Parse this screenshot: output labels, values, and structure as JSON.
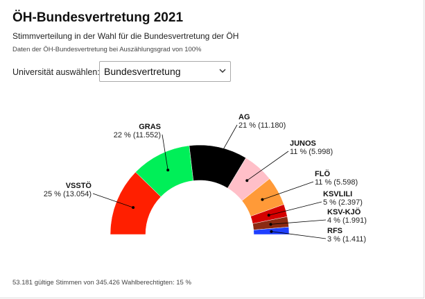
{
  "header": {
    "title": "ÖH-Bundesvertretung 2021",
    "subtitle": "Stimmverteilung in der Wahl für die Bundesvertretung der ÖH",
    "note": "Daten der ÖH-Bundesvertretung bei Auszählungsgrad von 100%"
  },
  "selector": {
    "label": "Universität auswählen:",
    "value": "Bundesvertretung",
    "icon": "chevron-down-icon"
  },
  "footer": {
    "text": "53.181 gültige Stimmen von 345.426 Wahlberechtigten: 15 %"
  },
  "chart_data": {
    "type": "pie",
    "variant": "semicircle-donut",
    "slices": [
      {
        "name": "VSSTÖ",
        "percent": 25,
        "votes": 13054,
        "label": "25 % (13.054)",
        "color": "#ff1f00"
      },
      {
        "name": "GRAS",
        "percent": 22,
        "votes": 11552,
        "label": "22 % (11.552)",
        "color": "#00ef58"
      },
      {
        "name": "AG",
        "percent": 21,
        "votes": 11180,
        "label": "21 % (11.180)",
        "color": "#000000"
      },
      {
        "name": "JUNOS",
        "percent": 11,
        "votes": 5998,
        "label": "11 % (5.998)",
        "color": "#ffbfc8"
      },
      {
        "name": "FLÖ",
        "percent": 11,
        "votes": 5598,
        "label": "11 % (5.598)",
        "color": "#ff9a38"
      },
      {
        "name": "KSVLILI",
        "percent": 5,
        "votes": 2397,
        "label": "5 % (2.397)",
        "color": "#d40000"
      },
      {
        "name": "KSV-KJÖ",
        "percent": 4,
        "votes": 1991,
        "label": "4 % (1.991)",
        "color": "#8b2a12"
      },
      {
        "name": "RFS",
        "percent": 3,
        "votes": 1411,
        "label": "3 % (1.411)",
        "color": "#1f3fff"
      }
    ]
  }
}
